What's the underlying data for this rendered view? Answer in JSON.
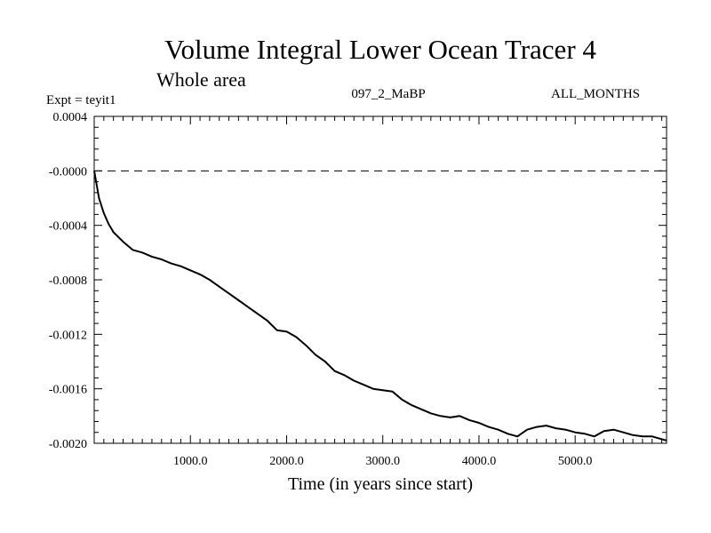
{
  "chart_data": {
    "type": "line",
    "title": "Volume Integral Lower Ocean Tracer 4",
    "subtitle": "Whole area",
    "experiment_label": "Expt = teyit1",
    "period_label": "097_2_MaBP",
    "season_label": "ALL_MONTHS",
    "xlabel": "Time (in years since start)",
    "ylabel": "",
    "xlim": [
      0,
      5950
    ],
    "ylim": [
      -0.002,
      0.0004
    ],
    "x_ticks": [
      1000,
      2000,
      3000,
      4000,
      5000
    ],
    "x_tick_labels": [
      "1000.0",
      "2000.0",
      "3000.0",
      "4000.0",
      "5000.0"
    ],
    "y_ticks": [
      0.0004,
      0.0,
      -0.0004,
      -0.0008,
      -0.0012,
      -0.0016,
      -0.002
    ],
    "y_tick_labels": [
      "0.0004",
      "-0.0000",
      "-0.0004",
      "-0.0008",
      "-0.0012",
      "-0.0016",
      "-0.0020"
    ],
    "reference_line": {
      "y": 0.0,
      "style": "dashed"
    },
    "series": [
      {
        "name": "Volume Integral Lower Ocean Tracer 4",
        "x": [
          0,
          50,
          100,
          150,
          200,
          300,
          400,
          500,
          600,
          700,
          800,
          900,
          1000,
          1100,
          1200,
          1300,
          1400,
          1500,
          1600,
          1700,
          1800,
          1900,
          2000,
          2100,
          2200,
          2300,
          2400,
          2500,
          2600,
          2700,
          2800,
          2900,
          3000,
          3100,
          3200,
          3300,
          3400,
          3500,
          3600,
          3700,
          3800,
          3900,
          4000,
          4100,
          4200,
          4300,
          4400,
          4500,
          4600,
          4700,
          4800,
          4900,
          5000,
          5100,
          5200,
          5300,
          5400,
          5500,
          5600,
          5700,
          5800,
          5950
        ],
        "y": [
          0.0,
          -0.0002,
          -0.00031,
          -0.00039,
          -0.00045,
          -0.00052,
          -0.00058,
          -0.0006,
          -0.00063,
          -0.00065,
          -0.00068,
          -0.0007,
          -0.00073,
          -0.00076,
          -0.0008,
          -0.00085,
          -0.0009,
          -0.00095,
          -0.001,
          -0.00105,
          -0.0011,
          -0.00117,
          -0.00118,
          -0.00122,
          -0.00128,
          -0.00135,
          -0.0014,
          -0.00147,
          -0.0015,
          -0.00154,
          -0.00157,
          -0.0016,
          -0.00161,
          -0.00162,
          -0.00168,
          -0.00172,
          -0.00175,
          -0.00178,
          -0.0018,
          -0.00181,
          -0.0018,
          -0.00183,
          -0.00185,
          -0.00188,
          -0.0019,
          -0.00193,
          -0.00195,
          -0.0019,
          -0.00188,
          -0.00187,
          -0.00189,
          -0.0019,
          -0.00192,
          -0.00193,
          -0.00195,
          -0.00191,
          -0.0019,
          -0.00192,
          -0.00194,
          -0.00195,
          -0.00195,
          -0.00198
        ]
      }
    ]
  }
}
